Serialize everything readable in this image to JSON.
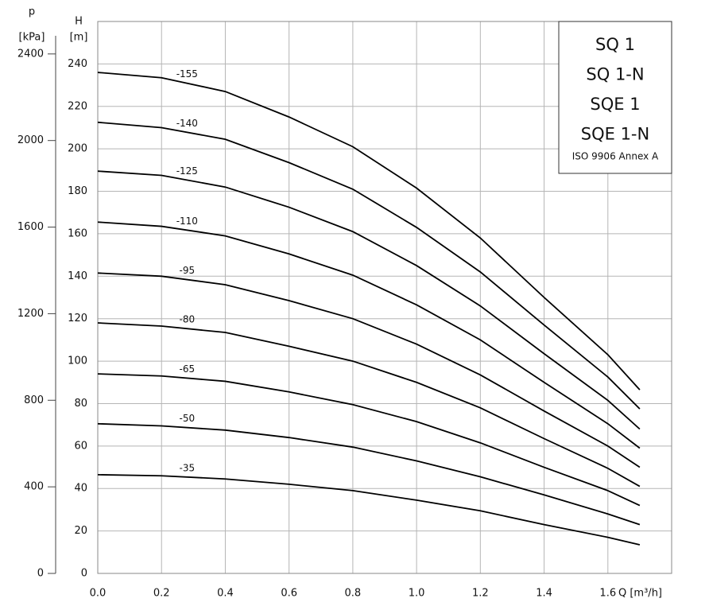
{
  "chart_data": {
    "type": "line",
    "xlabel": "Q [m³/h]",
    "ylabel_symbol": "H",
    "ylabel_unit": "[m]",
    "y2label_symbol": "p",
    "y2label_unit": "[kPa]",
    "legend_box": {
      "lines": [
        "SQ 1",
        "SQ 1-N",
        "SQE 1",
        "SQE 1-N"
      ],
      "note": "ISO 9906 Annex A"
    },
    "xlim": [
      0,
      1.8
    ],
    "xticks": [
      {
        "value": 0,
        "label": "0.0"
      },
      0.2,
      0.4,
      0.6,
      0.8,
      {
        "value": 1,
        "label": "1.0"
      },
      1.2,
      1.4,
      1.6
    ],
    "ylim": [
      0,
      260
    ],
    "yticks": [
      0,
      20,
      40,
      60,
      80,
      100,
      120,
      140,
      160,
      180,
      200,
      220,
      240
    ],
    "y2lim": [
      0,
      2550
    ],
    "y2ticks": [
      0,
      400,
      800,
      1200,
      1600,
      2000,
      2400
    ],
    "grid": true,
    "x": [
      0,
      0.2,
      0.4,
      0.6,
      0.8,
      1.0,
      1.2,
      1.4,
      1.6,
      1.7
    ],
    "series": [
      {
        "name": "-155",
        "color": "#000000",
        "values": [
          236,
          233.5,
          227,
          215,
          201,
          181.5,
          158,
          130,
          103,
          86.5
        ]
      },
      {
        "name": "-140",
        "color": "#000000",
        "values": [
          212.5,
          210,
          204.5,
          193.5,
          181,
          163,
          142,
          117,
          92.5,
          77.5
        ]
      },
      {
        "name": "-125",
        "color": "#000000",
        "values": [
          189.5,
          187.5,
          182,
          172.5,
          161,
          145,
          126,
          103.5,
          81.5,
          68
        ]
      },
      {
        "name": "-110",
        "color": "#000000",
        "values": [
          165.5,
          163.5,
          159,
          150.5,
          140.5,
          126.5,
          110,
          90,
          70.5,
          59
        ]
      },
      {
        "name": "-95",
        "color": "#000000",
        "values": [
          141.5,
          140,
          136,
          128.5,
          120,
          108,
          93.5,
          76.5,
          60,
          50
        ]
      },
      {
        "name": "-80",
        "color": "#000000",
        "values": [
          118,
          116.5,
          113.5,
          107,
          100,
          90,
          78,
          63.5,
          49.5,
          41
        ]
      },
      {
        "name": "-65",
        "color": "#000000",
        "values": [
          94,
          93,
          90.5,
          85.5,
          79.5,
          71.5,
          61.5,
          50,
          39,
          32
        ]
      },
      {
        "name": "-50",
        "color": "#000000",
        "values": [
          70.5,
          69.5,
          67.5,
          64,
          59.5,
          53,
          45.5,
          37,
          28,
          23
        ]
      },
      {
        "name": "-35",
        "color": "#000000",
        "values": [
          46.5,
          46,
          44.5,
          42,
          39,
          34.5,
          29.5,
          23,
          17,
          13.5
        ]
      }
    ]
  }
}
